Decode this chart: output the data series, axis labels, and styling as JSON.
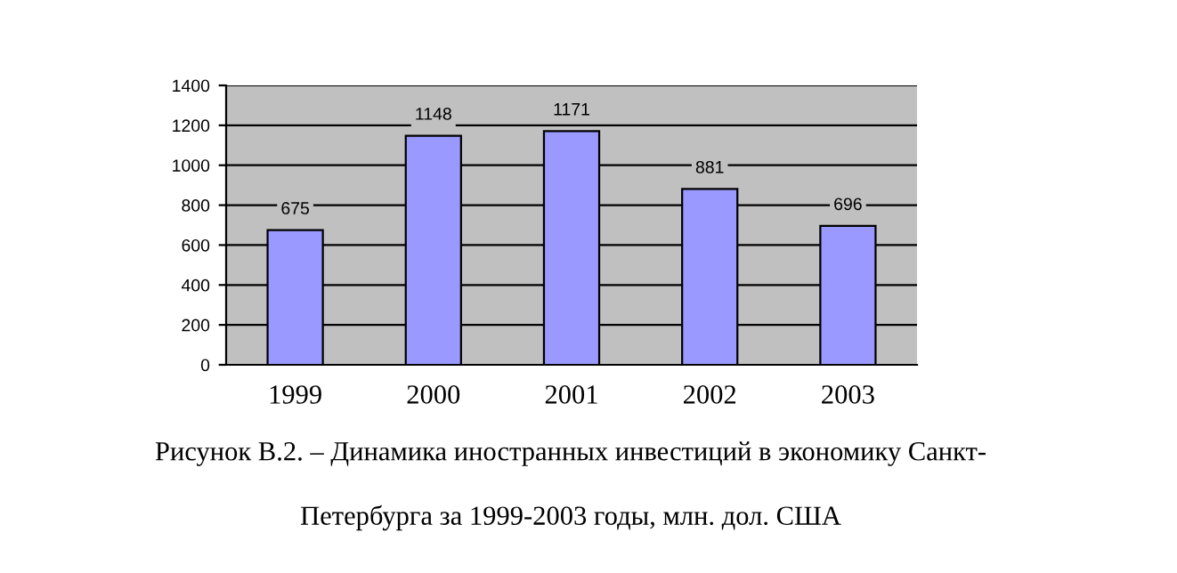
{
  "chart_data": {
    "type": "bar",
    "categories": [
      "1999",
      "2000",
      "2001",
      "2002",
      "2003"
    ],
    "values": [
      675,
      1148,
      1171,
      881,
      696
    ],
    "color": "#9999ff",
    "ylim": [
      0,
      1400
    ],
    "yticks": [
      0,
      200,
      400,
      600,
      800,
      1000,
      1200,
      1400
    ],
    "grid": "y",
    "data_labels": true,
    "annotations": [
      "Рисунок В.2. – Динамика иностранных инвестиций в экономику Санкт-",
      "Петербурга за 1999-2003 годы, млн. дол. США"
    ]
  }
}
